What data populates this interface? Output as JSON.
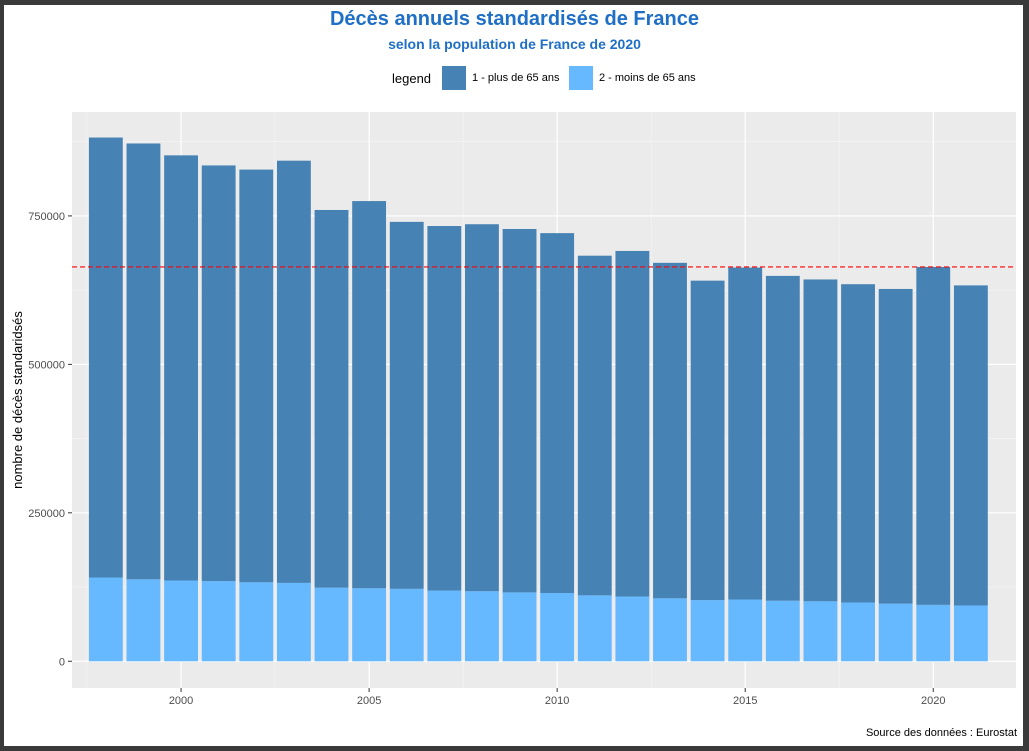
{
  "chart_data": {
    "type": "bar",
    "stacked": true,
    "title": "Décès annuels standardisés de France",
    "subtitle": "selon la population de France de 2020",
    "xlabel": "",
    "ylabel": "nombre de décès standaridsés",
    "legend_title": "legend",
    "legend_position": "top",
    "grid": true,
    "categories": [
      1998,
      1999,
      2000,
      2001,
      2002,
      2003,
      2004,
      2005,
      2006,
      2007,
      2008,
      2009,
      2010,
      2011,
      2012,
      2013,
      2014,
      2015,
      2016,
      2017,
      2018,
      2019,
      2020,
      2021
    ],
    "series": [
      {
        "name": "2 - moins de 65 ans",
        "color": "#66b8ff",
        "values": [
          141000,
          138000,
          136000,
          135000,
          133000,
          132000,
          124000,
          123000,
          122000,
          119000,
          118000,
          116000,
          115000,
          111000,
          109000,
          106000,
          103000,
          104000,
          102000,
          101000,
          99000,
          97000,
          95000,
          94000
        ]
      },
      {
        "name": "1 - plus de 65 ans",
        "color": "#4682b4",
        "values": [
          741000,
          734000,
          716000,
          700000,
          695000,
          711000,
          636000,
          652000,
          618000,
          614000,
          618000,
          612000,
          606000,
          572000,
          582000,
          565000,
          538000,
          559000,
          547000,
          542000,
          536000,
          530000,
          569000,
          539000
        ]
      }
    ],
    "reference_line": {
      "value": 664000,
      "color": "#ff0000",
      "style": "dashed"
    },
    "ylim": [
      -45000,
      925000
    ],
    "y_ticks": [
      0,
      250000,
      500000,
      750000
    ],
    "y_tick_labels": [
      "0",
      "250000",
      "500000",
      "750000"
    ],
    "x_ticks": [
      2000,
      2005,
      2010,
      2015,
      2020
    ],
    "xlim": [
      1997.1,
      2022.2
    ],
    "caption": "Source des données : Eurostat"
  }
}
